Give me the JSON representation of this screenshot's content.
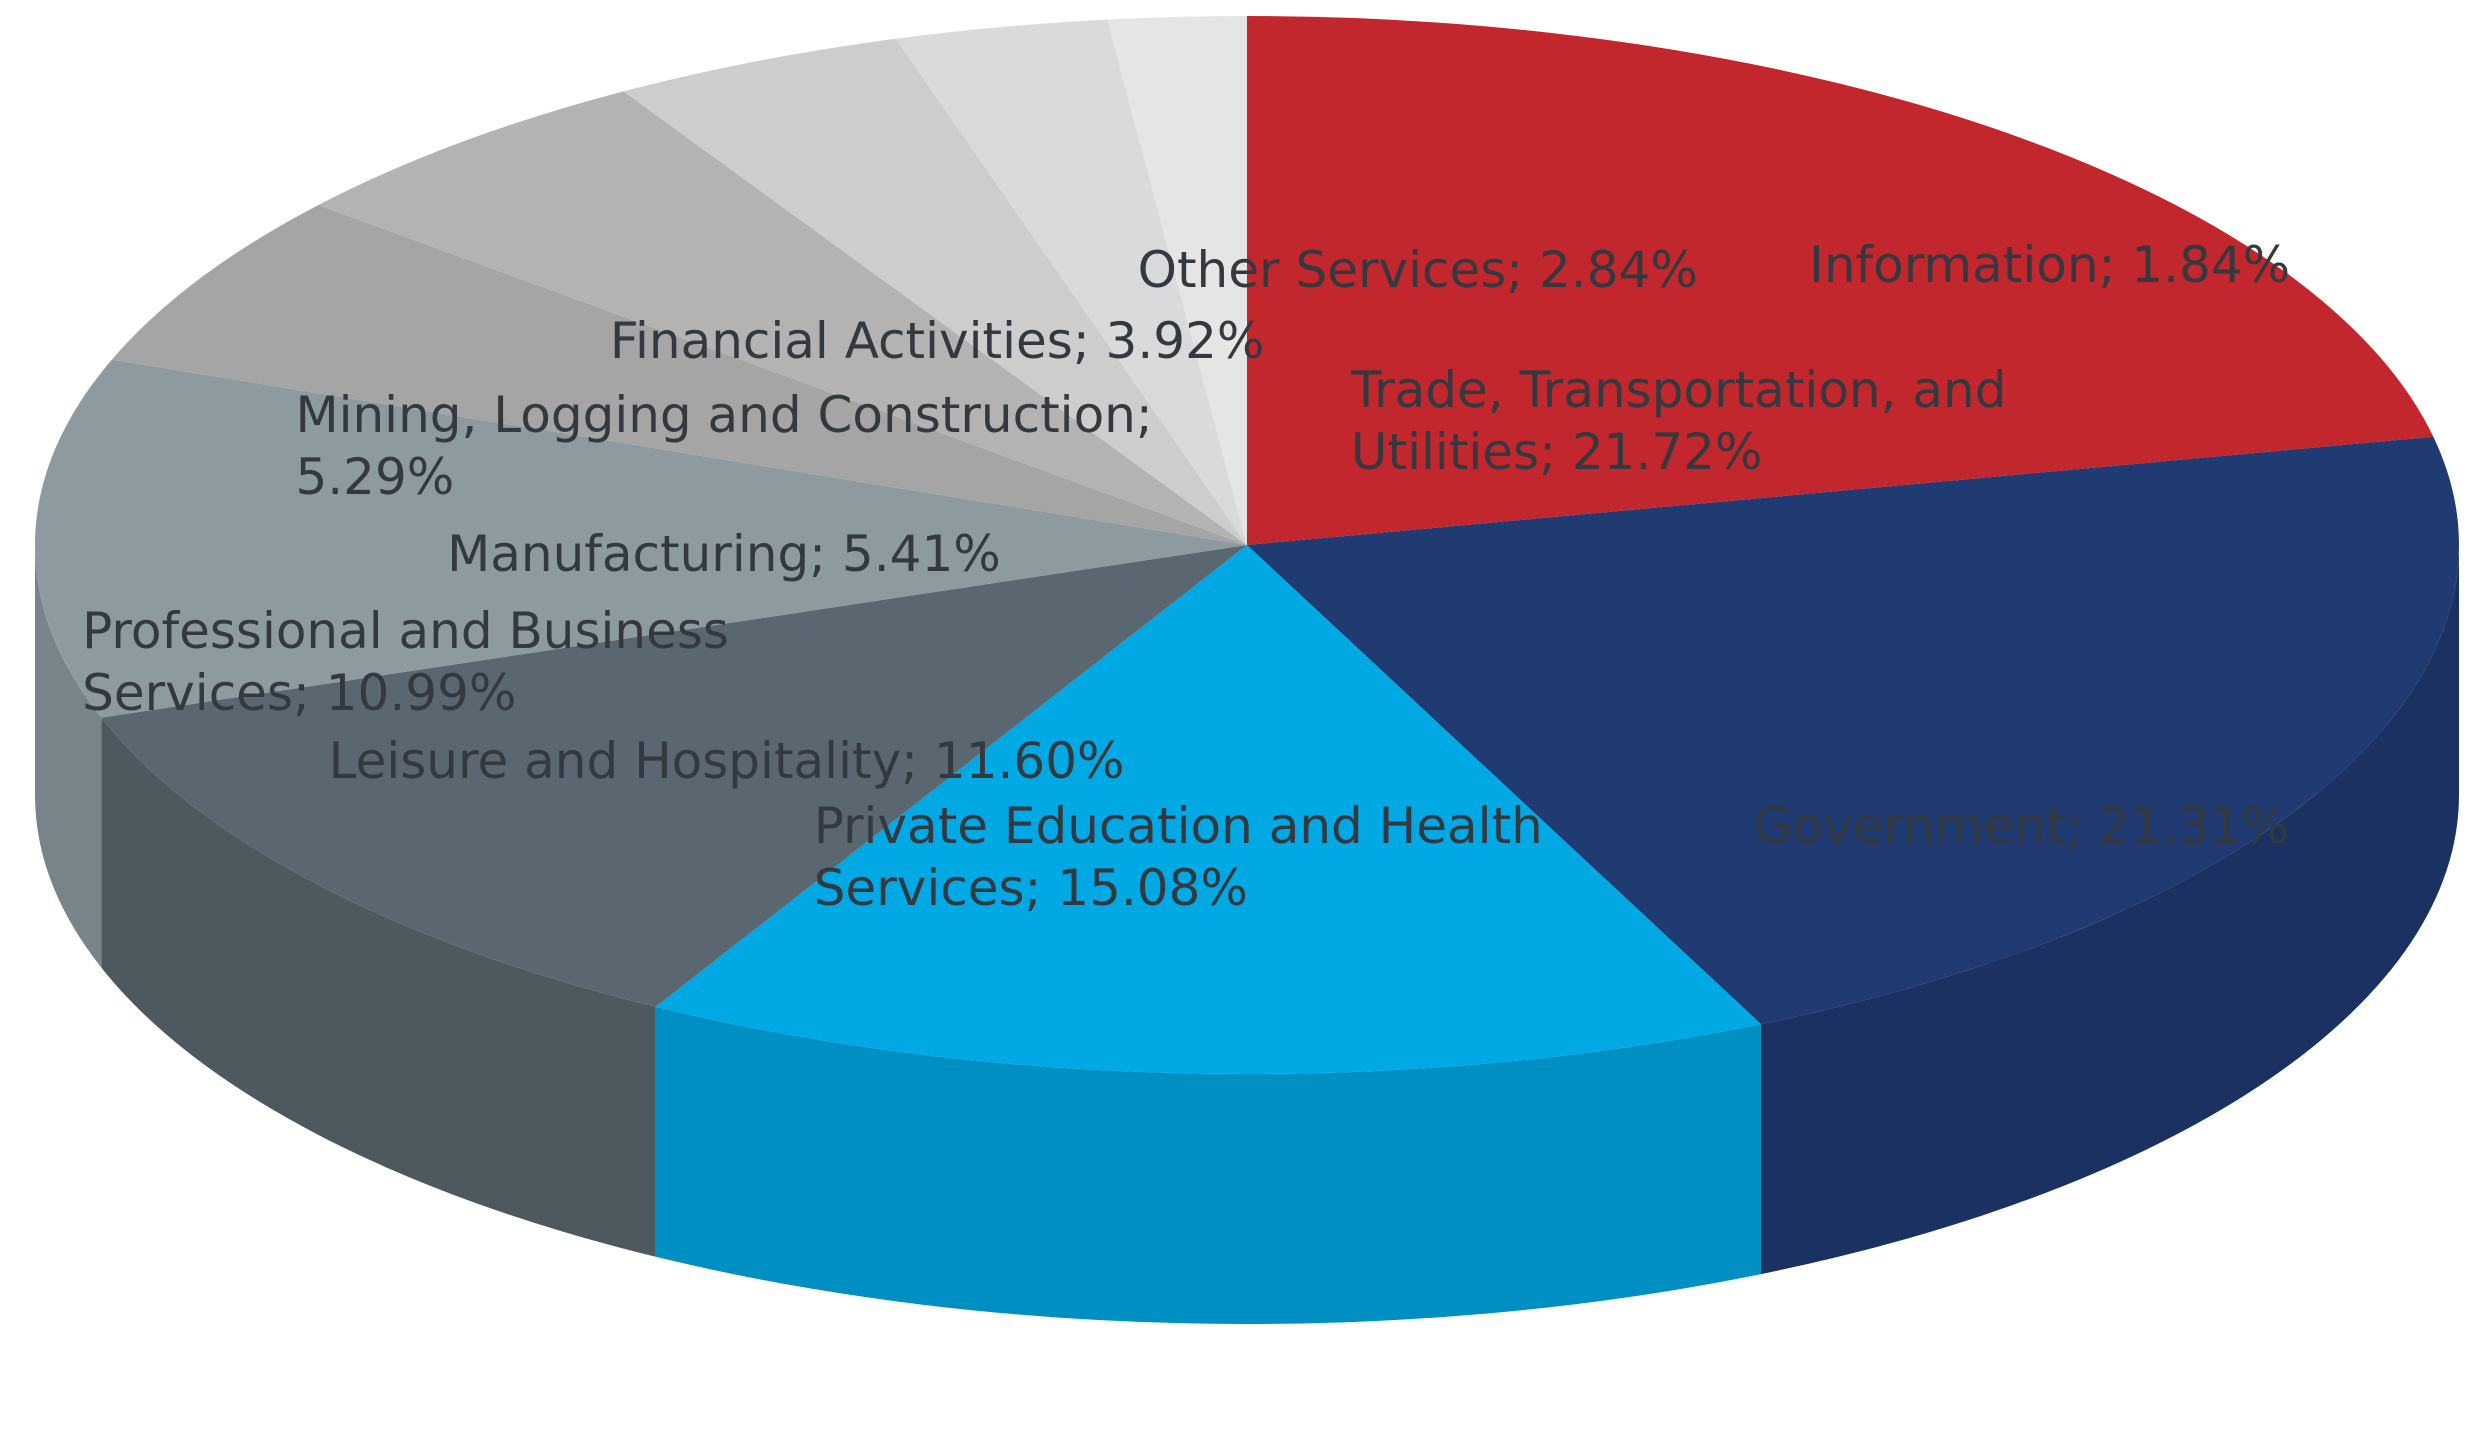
{
  "chart_data": {
    "type": "pie",
    "categories": [
      "Trade, Transportation, and\nUtilities; 21.72%",
      "Government; 21.31%",
      "Private Education and Health\nServices; 15.08%",
      "Leisure and Hospitality; 11.60%",
      "Professional and Business\nServices; 10.99%",
      "Manufacturing; 5.41%",
      "Mining, Logging and Construction;\n5.29%",
      "Financial Activities; 3.92%",
      "Other Services; 2.84%",
      "Information; 1.84%"
    ],
    "values": [
      21.72,
      21.31,
      15.08,
      11.6,
      10.99,
      5.41,
      5.29,
      3.92,
      2.84,
      1.84
    ],
    "colors": [
      "#c1272d",
      "#203a72",
      "#00a8e4",
      "#5b6770",
      "#8d9ba1",
      "#a5a5a5",
      "#b3b3b3",
      "#cdcdcd",
      "#d8dadb",
      "#e5e5e5"
    ]
  }
}
